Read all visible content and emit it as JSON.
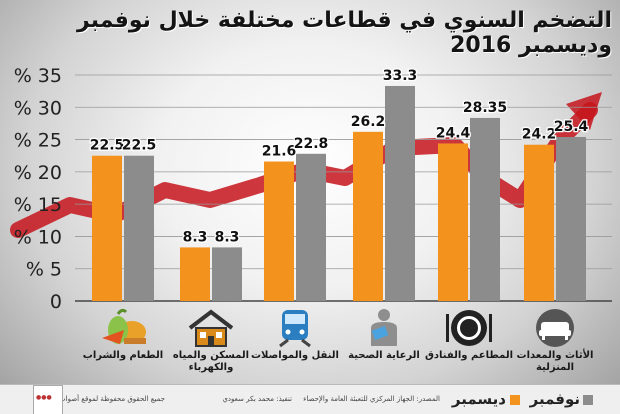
{
  "title": "التضخم السنوي في قطاعات مختلفة خلال نوفمبر وديسمبر 2016",
  "chart_data": {
    "type": "bar",
    "categories": [
      "الطعام والشراب",
      "المسكن والمياه والكهرباء",
      "النقل والمواصلات",
      "الرعاية الصحية",
      "المطاعم والفنادق",
      "الأثاث والمعدات المنزلية"
    ],
    "series": [
      {
        "name": "ديسمبر",
        "color": "#f4921e",
        "values": [
          22.5,
          8.3,
          21.6,
          26.2,
          24.4,
          24.2
        ]
      },
      {
        "name": "نوفمبر",
        "color": "#8c8c8c",
        "values": [
          22.5,
          8.3,
          22.8,
          33.3,
          28.35,
          25.4
        ]
      }
    ],
    "yticks": [
      "0",
      "% 5",
      "% 10",
      "% 15",
      "% 20",
      "% 25",
      "% 30",
      "% 35"
    ],
    "ylim": [
      0,
      35
    ],
    "category_icons": [
      "food-icon",
      "house-icon",
      "train-icon",
      "health-icon",
      "plate-icon",
      "sofa-icon"
    ]
  },
  "legend": {
    "december": "ديسمبر",
    "november": "نوفمبر"
  },
  "footer": {
    "source": "المصدر: الجهاز المركزي للتعبئة العامة والإحصاء",
    "design": "تنفيذ: محمد بكر سعودي",
    "rights": "جميع الحقوق محفوظة لموقع أصوات مصرية"
  }
}
